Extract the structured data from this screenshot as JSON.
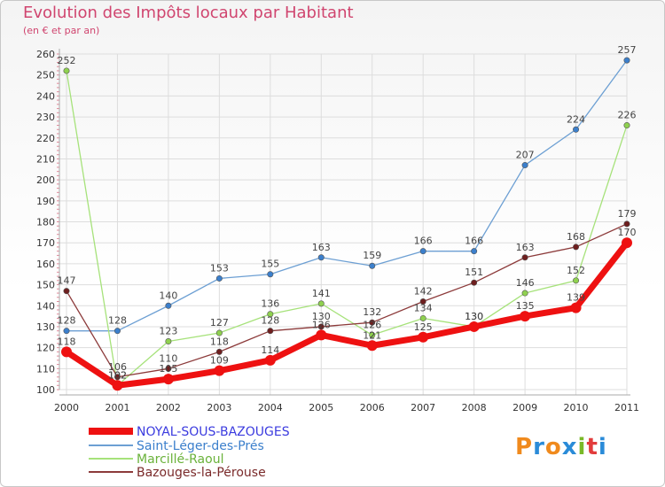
{
  "title": "Evolution des Impôts locaux par Habitant",
  "subtitle": "(en € et par an)",
  "logo": {
    "text": "Proxiti",
    "colors": [
      "#f08a1d",
      "#2a8bd8",
      "#f08a1d",
      "#2a8bd8",
      "#79b928",
      "#e23c3c",
      "#2a8bd8"
    ]
  },
  "chart_data": {
    "type": "line",
    "title": "Evolution des Impôts locaux par Habitant",
    "subtitle": "(en € et par an)",
    "xlabel": "",
    "ylabel": "",
    "ylim": [
      100,
      260
    ],
    "yticks": [
      100,
      110,
      120,
      130,
      140,
      150,
      160,
      170,
      180,
      190,
      200,
      210,
      220,
      230,
      240,
      250,
      260
    ],
    "x": [
      "2000",
      "2001",
      "2002",
      "2003",
      "2004",
      "2005",
      "2006",
      "2007",
      "2008",
      "2009",
      "2010",
      "2011"
    ],
    "legend_position": "bottom-left",
    "series": [
      {
        "name": "NOYAL-SOUS-BAZOUGES",
        "color": "#ee1111",
        "point_color": "#ee1111",
        "legend_color": "#3b3bdf",
        "weight": "bold",
        "values": [
          118,
          102,
          105,
          109,
          114,
          126,
          121,
          125,
          130,
          135,
          139,
          170
        ]
      },
      {
        "name": "Saint-Léger-des-Prés",
        "color": "#6c9fd3",
        "point_color": "#3b7fcc",
        "legend_color": "#3b7fcc",
        "weight": "thin",
        "values": [
          128,
          128,
          140,
          153,
          155,
          163,
          159,
          166,
          166,
          207,
          224,
          257
        ]
      },
      {
        "name": "Marcillé-Raoul",
        "color": "#a6e27a",
        "point_color": "#8fd14f",
        "legend_color": "#6ab23a",
        "weight": "thin",
        "values": [
          252,
          102,
          123,
          127,
          136,
          141,
          126,
          134,
          130,
          146,
          152,
          226
        ]
      },
      {
        "name": "Bazouges-la-Pérouse",
        "color": "#8c3a3a",
        "point_color": "#6e1f1f",
        "legend_color": "#7a2a2a",
        "weight": "thin",
        "values": [
          147,
          106,
          110,
          118,
          128,
          130,
          132,
          142,
          151,
          163,
          168,
          179
        ]
      }
    ]
  }
}
